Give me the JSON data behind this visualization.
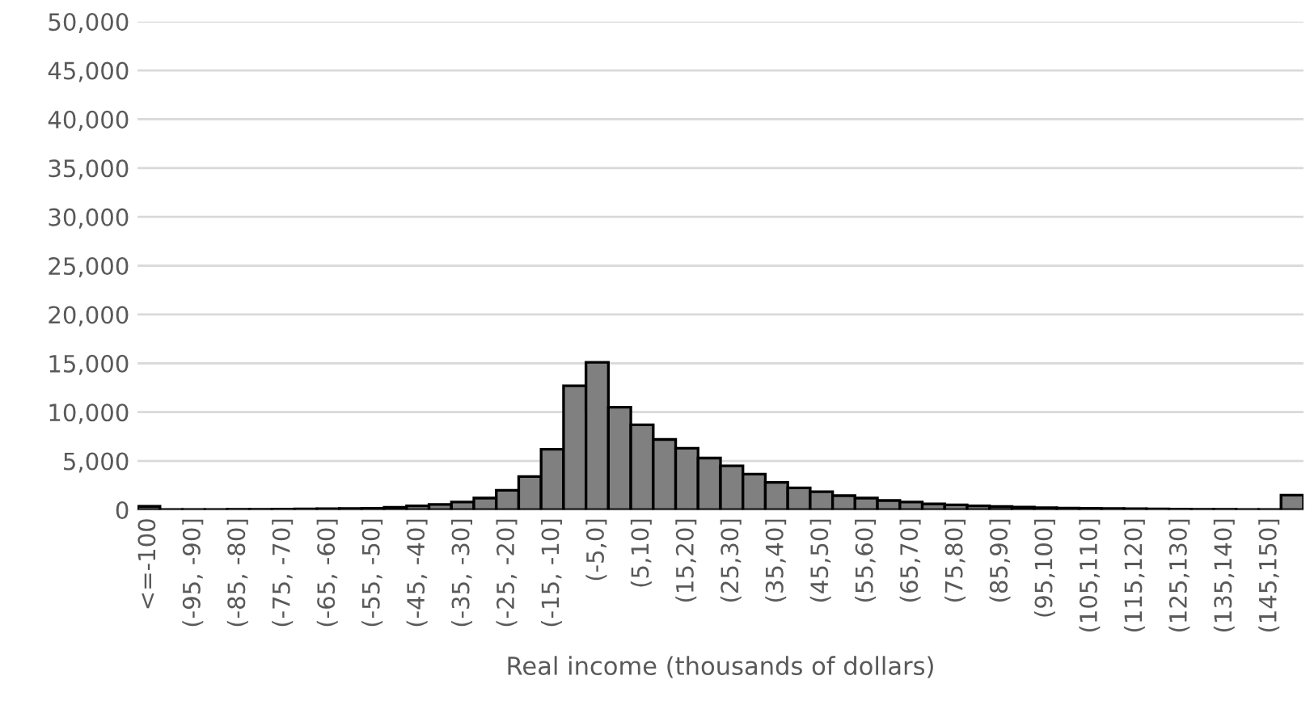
{
  "chart_data": {
    "type": "bar",
    "xlabel": "Real income (thousands of dollars)",
    "categories": [
      "<=-100",
      null,
      "(-95, -90]",
      null,
      "(-85, -80]",
      null,
      "(-75, -70]",
      null,
      "(-65, -60]",
      null,
      "(-55, -50]",
      null,
      "(-45, -40]",
      null,
      "(-35, -30]",
      null,
      "(-25, -20]",
      null,
      "(-15, -10]",
      null,
      "(-5,0]",
      null,
      "(5,10]",
      null,
      "(15,20]",
      null,
      "(25,30]",
      null,
      "(35,40]",
      null,
      "(45,50]",
      null,
      "(55,60]",
      null,
      "(65,70]",
      null,
      "(75,80]",
      null,
      "(85,90]",
      null,
      "(95,100]",
      null,
      "(105,110]",
      null,
      "(115,120]",
      null,
      "(125,130]",
      null,
      "(135,140]",
      null,
      "(145,150]",
      null
    ],
    "values": [
      350,
      30,
      30,
      30,
      40,
      50,
      60,
      80,
      100,
      120,
      150,
      250,
      400,
      550,
      800,
      1200,
      2000,
      3400,
      6200,
      12700,
      15100,
      10500,
      8700,
      7200,
      6300,
      5300,
      4500,
      3650,
      2800,
      2250,
      1850,
      1450,
      1200,
      950,
      800,
      600,
      500,
      400,
      330,
      280,
      220,
      170,
      150,
      120,
      100,
      80,
      60,
      50,
      40,
      30,
      30,
      1500
    ],
    "color": "#808080",
    "ylim": [
      0,
      50000
    ],
    "yticks": [
      0,
      {
        "value": 5000,
        "label": "5,000"
      },
      {
        "value": 10000,
        "label": "10,000"
      },
      {
        "value": 15000,
        "label": "15,000"
      },
      {
        "value": 20000,
        "label": "20,000"
      },
      {
        "value": 25000,
        "label": "25,000"
      },
      {
        "value": 30000,
        "label": "30,000"
      },
      {
        "value": 35000,
        "label": "35,000"
      },
      {
        "value": 40000,
        "label": "40,000"
      },
      {
        "value": 45000,
        "label": "45,000"
      },
      {
        "value": 50000,
        "label": "50,000"
      }
    ],
    "grid": "y"
  }
}
